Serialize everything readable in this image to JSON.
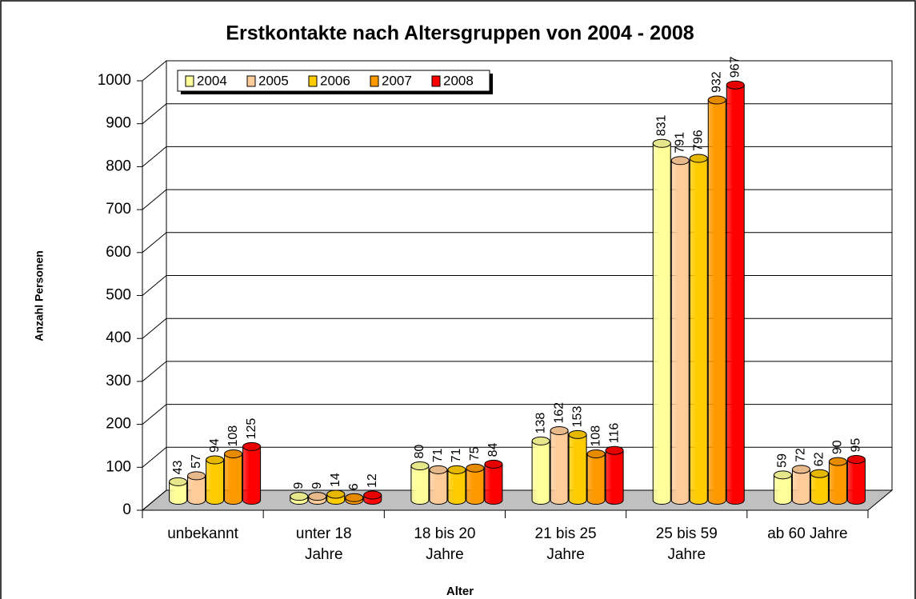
{
  "chart_data": {
    "type": "bar",
    "title": "Erstkontakte nach Altersgruppen von 2004 - 2008",
    "x_label": "Alter",
    "y_label": "Anzahl Personen",
    "categories": [
      "unbekannt",
      "unter 18\nJahre",
      "18 bis 20\nJahre",
      "21 bis 25\nJahre",
      "25 bis 59\nJahre",
      "ab 60 Jahre"
    ],
    "series": [
      {
        "name": "2004",
        "color": "#FFFF99",
        "values": [
          43,
          9,
          80,
          138,
          831,
          59
        ]
      },
      {
        "name": "2005",
        "color": "#FFCC99",
        "values": [
          57,
          9,
          71,
          162,
          791,
          72
        ]
      },
      {
        "name": "2006",
        "color": "#FFCC00",
        "values": [
          94,
          14,
          71,
          153,
          796,
          62
        ]
      },
      {
        "name": "2007",
        "color": "#FF9900",
        "values": [
          108,
          6,
          75,
          108,
          932,
          90
        ]
      },
      {
        "name": "2008",
        "color": "#FF0000",
        "values": [
          125,
          12,
          84,
          116,
          967,
          95
        ]
      }
    ],
    "ylim": [
      0,
      1000
    ],
    "yticks": [
      0,
      100,
      200,
      300,
      400,
      500,
      600,
      700,
      800,
      900,
      1000
    ],
    "grid": true,
    "legend": "top-left"
  }
}
